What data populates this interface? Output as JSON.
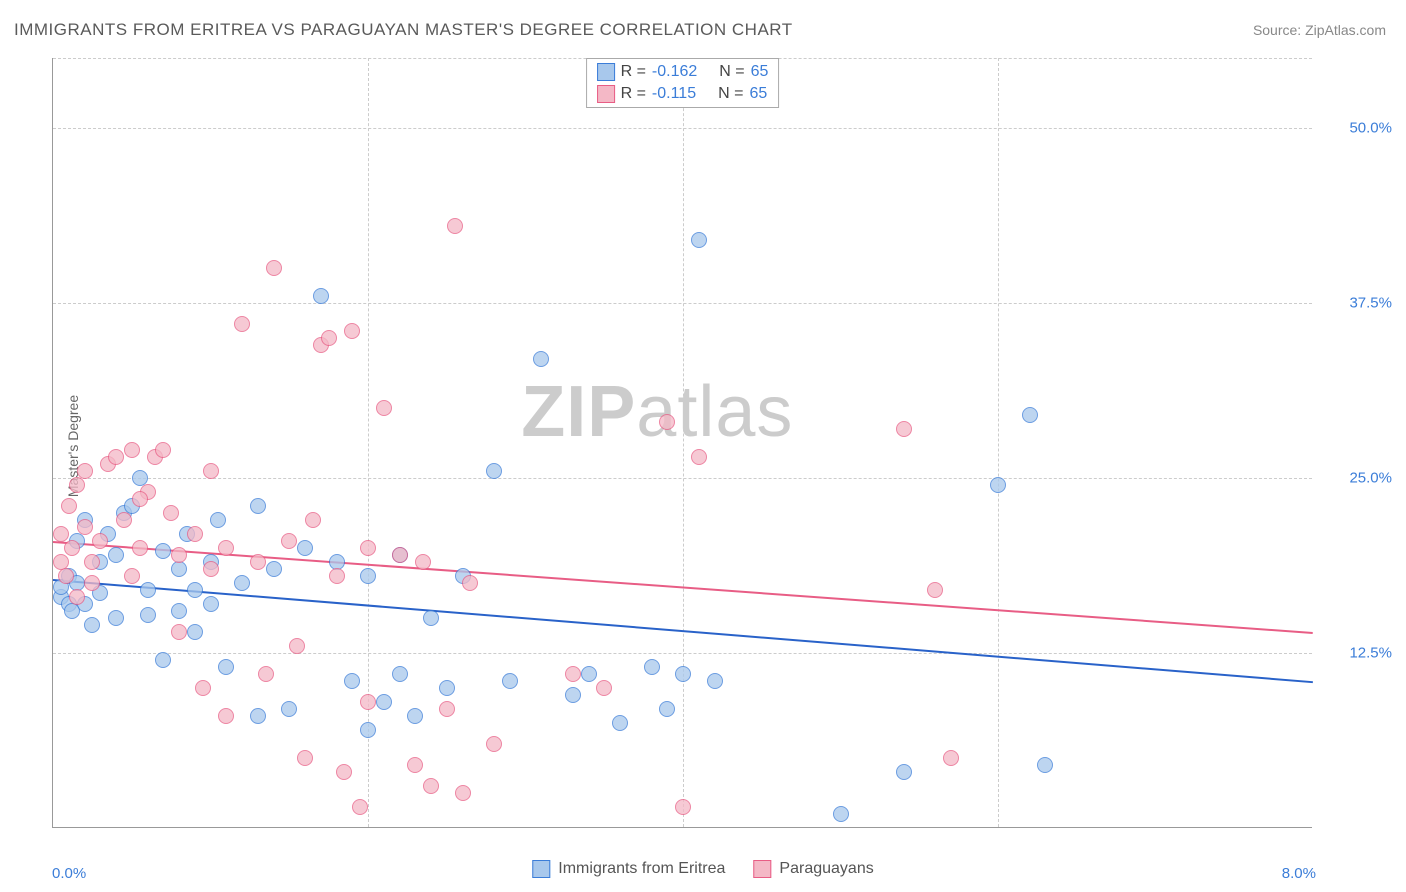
{
  "title": "IMMIGRANTS FROM ERITREA VS PARAGUAYAN MASTER'S DEGREE CORRELATION CHART",
  "source": "Source: ZipAtlas.com",
  "y_axis_label": "Master's Degree",
  "watermark_bold": "ZIP",
  "watermark_light": "atlas",
  "chart": {
    "type": "scatter",
    "x_min": 0.0,
    "x_max": 8.0,
    "y_min": 0.0,
    "y_max": 55.0,
    "y_ticks": [
      12.5,
      25.0,
      37.5,
      50.0
    ],
    "y_tick_labels": [
      "12.5%",
      "25.0%",
      "37.5%",
      "50.0%"
    ],
    "x_grid": [
      2.0,
      4.0,
      6.0
    ],
    "x_left_label": "0.0%",
    "x_right_label": "8.0%",
    "background_color": "#ffffff",
    "grid_color": "#cccccc",
    "axis_color": "#999999"
  },
  "legend_top": {
    "rows": [
      {
        "swatch_fill": "#a8c8ec",
        "swatch_border": "#3b7dd8",
        "r_label": "R =",
        "r_val": "-0.162",
        "n_label": "N =",
        "n_val": "65"
      },
      {
        "swatch_fill": "#f4b8c6",
        "swatch_border": "#e85d85",
        "r_label": "R =",
        "r_val": "-0.115",
        "n_label": "N =",
        "n_val": "65"
      }
    ]
  },
  "legend_bottom": {
    "items": [
      {
        "swatch_fill": "#a8c8ec",
        "swatch_border": "#3b7dd8",
        "label": "Immigrants from Eritrea"
      },
      {
        "swatch_fill": "#f4b8c6",
        "swatch_border": "#e85d85",
        "label": "Paraguayans"
      }
    ]
  },
  "series": [
    {
      "name": "eritrea",
      "fill": "#a8c8ec",
      "border": "#3b7dd8",
      "trend": {
        "y_at_xmin": 17.8,
        "y_at_xmax": 10.5,
        "color": "#2962c9",
        "width": 2
      },
      "points": [
        [
          0.05,
          16.5
        ],
        [
          0.05,
          17.2
        ],
        [
          0.1,
          16.0
        ],
        [
          0.1,
          18.0
        ],
        [
          0.12,
          15.5
        ],
        [
          0.15,
          17.5
        ],
        [
          0.15,
          20.5
        ],
        [
          0.2,
          22.0
        ],
        [
          0.2,
          16.0
        ],
        [
          0.25,
          14.5
        ],
        [
          0.3,
          19.0
        ],
        [
          0.35,
          21.0
        ],
        [
          0.4,
          15.0
        ],
        [
          0.4,
          19.5
        ],
        [
          0.45,
          22.5
        ],
        [
          0.5,
          23.0
        ],
        [
          0.55,
          25.0
        ],
        [
          0.6,
          17.0
        ],
        [
          0.7,
          19.8
        ],
        [
          0.7,
          12.0
        ],
        [
          0.8,
          15.5
        ],
        [
          0.8,
          18.5
        ],
        [
          0.85,
          21.0
        ],
        [
          0.9,
          17.0
        ],
        [
          0.9,
          14.0
        ],
        [
          1.0,
          16.0
        ],
        [
          1.0,
          19.0
        ],
        [
          1.05,
          22.0
        ],
        [
          1.1,
          11.5
        ],
        [
          1.2,
          17.5
        ],
        [
          1.3,
          8.0
        ],
        [
          1.3,
          23.0
        ],
        [
          1.4,
          18.5
        ],
        [
          1.5,
          8.5
        ],
        [
          1.6,
          20.0
        ],
        [
          1.7,
          38.0
        ],
        [
          1.8,
          19.0
        ],
        [
          1.9,
          10.5
        ],
        [
          2.0,
          7.0
        ],
        [
          2.0,
          18.0
        ],
        [
          2.1,
          9.0
        ],
        [
          2.2,
          11.0
        ],
        [
          2.2,
          19.5
        ],
        [
          2.3,
          8.0
        ],
        [
          2.4,
          15.0
        ],
        [
          2.5,
          10.0
        ],
        [
          2.6,
          18.0
        ],
        [
          2.8,
          25.5
        ],
        [
          2.9,
          10.5
        ],
        [
          3.1,
          33.5
        ],
        [
          3.3,
          9.5
        ],
        [
          3.4,
          11.0
        ],
        [
          3.6,
          7.5
        ],
        [
          3.8,
          11.5
        ],
        [
          3.9,
          8.5
        ],
        [
          4.0,
          11.0
        ],
        [
          4.1,
          42.0
        ],
        [
          4.2,
          10.5
        ],
        [
          5.0,
          1.0
        ],
        [
          5.4,
          4.0
        ],
        [
          6.0,
          24.5
        ],
        [
          6.2,
          29.5
        ],
        [
          6.3,
          4.5
        ],
        [
          0.3,
          16.8
        ],
        [
          0.6,
          15.2
        ]
      ]
    },
    {
      "name": "paraguayans",
      "fill": "#f4b8c6",
      "border": "#e85d85",
      "trend": {
        "y_at_xmin": 20.5,
        "y_at_xmax": 14.0,
        "color": "#e85d85",
        "width": 2
      },
      "points": [
        [
          0.05,
          19.0
        ],
        [
          0.05,
          21.0
        ],
        [
          0.08,
          18.0
        ],
        [
          0.1,
          23.0
        ],
        [
          0.12,
          20.0
        ],
        [
          0.15,
          24.5
        ],
        [
          0.15,
          16.5
        ],
        [
          0.2,
          21.5
        ],
        [
          0.2,
          25.5
        ],
        [
          0.25,
          19.0
        ],
        [
          0.3,
          20.5
        ],
        [
          0.35,
          26.0
        ],
        [
          0.4,
          26.5
        ],
        [
          0.45,
          22.0
        ],
        [
          0.5,
          18.0
        ],
        [
          0.5,
          27.0
        ],
        [
          0.55,
          20.0
        ],
        [
          0.6,
          24.0
        ],
        [
          0.65,
          26.5
        ],
        [
          0.7,
          27.0
        ],
        [
          0.75,
          22.5
        ],
        [
          0.8,
          19.5
        ],
        [
          0.8,
          14.0
        ],
        [
          0.9,
          21.0
        ],
        [
          0.95,
          10.0
        ],
        [
          1.0,
          18.5
        ],
        [
          1.0,
          25.5
        ],
        [
          1.1,
          20.0
        ],
        [
          1.1,
          8.0
        ],
        [
          1.2,
          36.0
        ],
        [
          1.3,
          19.0
        ],
        [
          1.35,
          11.0
        ],
        [
          1.4,
          40.0
        ],
        [
          1.5,
          20.5
        ],
        [
          1.55,
          13.0
        ],
        [
          1.6,
          5.0
        ],
        [
          1.65,
          22.0
        ],
        [
          1.7,
          34.5
        ],
        [
          1.75,
          35.0
        ],
        [
          1.8,
          18.0
        ],
        [
          1.85,
          4.0
        ],
        [
          1.9,
          35.5
        ],
        [
          1.95,
          1.5
        ],
        [
          2.0,
          9.0
        ],
        [
          2.0,
          20.0
        ],
        [
          2.1,
          30.0
        ],
        [
          2.2,
          19.5
        ],
        [
          2.3,
          4.5
        ],
        [
          2.35,
          19.0
        ],
        [
          2.4,
          3.0
        ],
        [
          2.5,
          8.5
        ],
        [
          2.55,
          43.0
        ],
        [
          2.6,
          2.5
        ],
        [
          2.65,
          17.5
        ],
        [
          2.8,
          6.0
        ],
        [
          3.3,
          11.0
        ],
        [
          3.5,
          10.0
        ],
        [
          3.9,
          29.0
        ],
        [
          4.0,
          1.5
        ],
        [
          4.1,
          26.5
        ],
        [
          5.4,
          28.5
        ],
        [
          5.6,
          17.0
        ],
        [
          5.7,
          5.0
        ],
        [
          0.25,
          17.5
        ],
        [
          0.55,
          23.5
        ]
      ]
    }
  ]
}
